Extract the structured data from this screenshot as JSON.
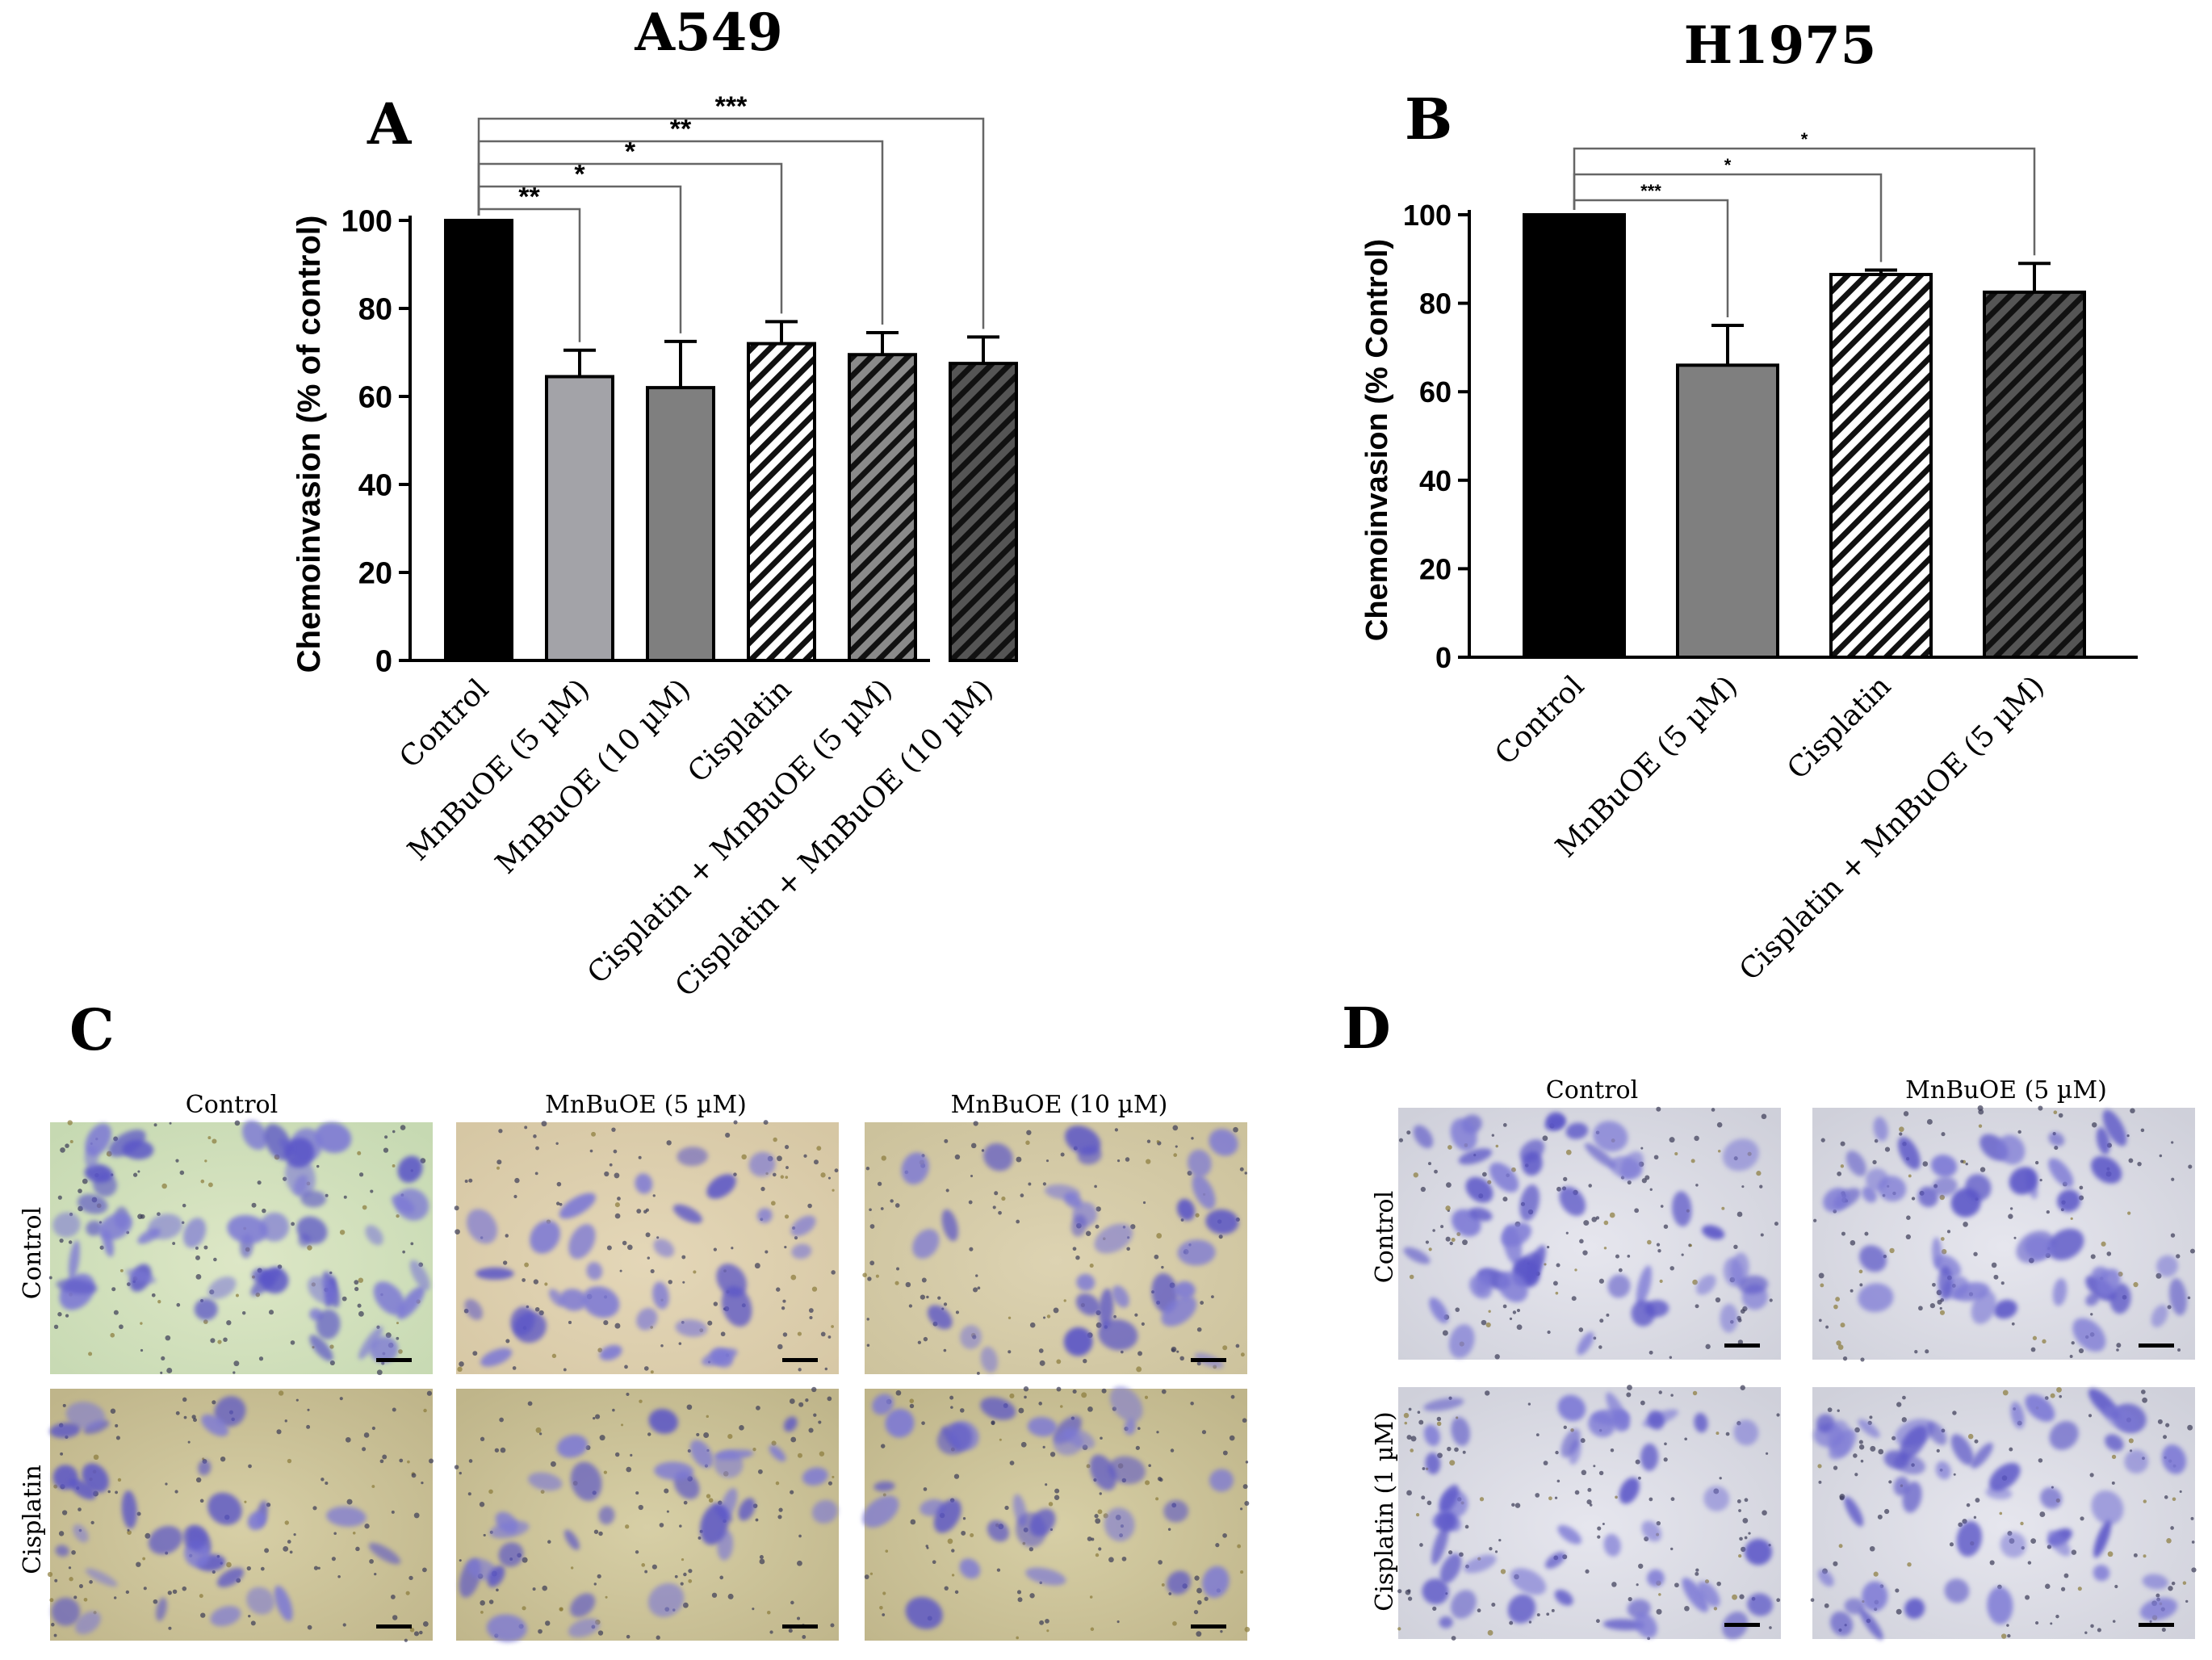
{
  "titles": {
    "a549": "A549",
    "h1975": "H1975"
  },
  "panel_letters": {
    "a": "A",
    "b": "B",
    "c": "C",
    "d": "D"
  },
  "chart_data": [
    {
      "id": "A",
      "type": "bar",
      "title": "A549",
      "ylabel": "Chemoinvasion (% of control)",
      "ylim": [
        0,
        100
      ],
      "yticks": [
        0,
        20,
        40,
        60,
        80,
        100
      ],
      "categories": [
        "Control",
        "MnBuOE (5 µM)",
        "MnBuOE (10 µM)",
        "Cisplatin",
        "Cisplatin + MnBuOE (5 µM)",
        "Cisplatin + MnBuOE (10 µM)"
      ],
      "values": [
        100,
        64.5,
        62,
        72,
        69.5,
        67.5
      ],
      "errors": [
        0,
        6,
        10.5,
        5,
        5,
        6
      ],
      "fills": [
        "solid-black",
        "solid-light-gray",
        "solid-gray",
        "hatch-white",
        "hatch-gray",
        "hatch-dark"
      ],
      "significance": [
        {
          "from": 0,
          "to": 1,
          "label": "**"
        },
        {
          "from": 0,
          "to": 2,
          "label": "*"
        },
        {
          "from": 0,
          "to": 3,
          "label": "*"
        },
        {
          "from": 0,
          "to": 4,
          "label": "**"
        },
        {
          "from": 0,
          "to": 5,
          "label": "***"
        }
      ]
    },
    {
      "id": "B",
      "type": "bar",
      "title": "H1975",
      "ylabel": "Chemoinvasion (% Control)",
      "ylim": [
        0,
        100
      ],
      "yticks": [
        0,
        20,
        40,
        60,
        80,
        100
      ],
      "categories": [
        "Control",
        "MnBuOE (5 µM)",
        "Cisplatin",
        "Cisplatin + MnBuOE (5 µM)"
      ],
      "values": [
        100,
        66,
        86.5,
        82.5
      ],
      "errors": [
        0,
        9,
        1,
        6.5
      ],
      "fills": [
        "solid-black",
        "solid-gray",
        "hatch-white",
        "hatch-dark"
      ],
      "significance": [
        {
          "from": 0,
          "to": 1,
          "label": "***"
        },
        {
          "from": 0,
          "to": 2,
          "label": "*"
        },
        {
          "from": 0,
          "to": 3,
          "label": "*"
        }
      ]
    }
  ],
  "micrographs": {
    "c": {
      "columns": [
        "Control",
        "MnBuOE (5 µM)",
        "MnBuOE (10 µM)"
      ],
      "rows": [
        "Control",
        "Cisplatin"
      ]
    },
    "d": {
      "columns": [
        "Control",
        "MnBuOE (5 µM)"
      ],
      "rows": [
        "Control",
        "Cisplatin (1 µM)"
      ]
    }
  }
}
